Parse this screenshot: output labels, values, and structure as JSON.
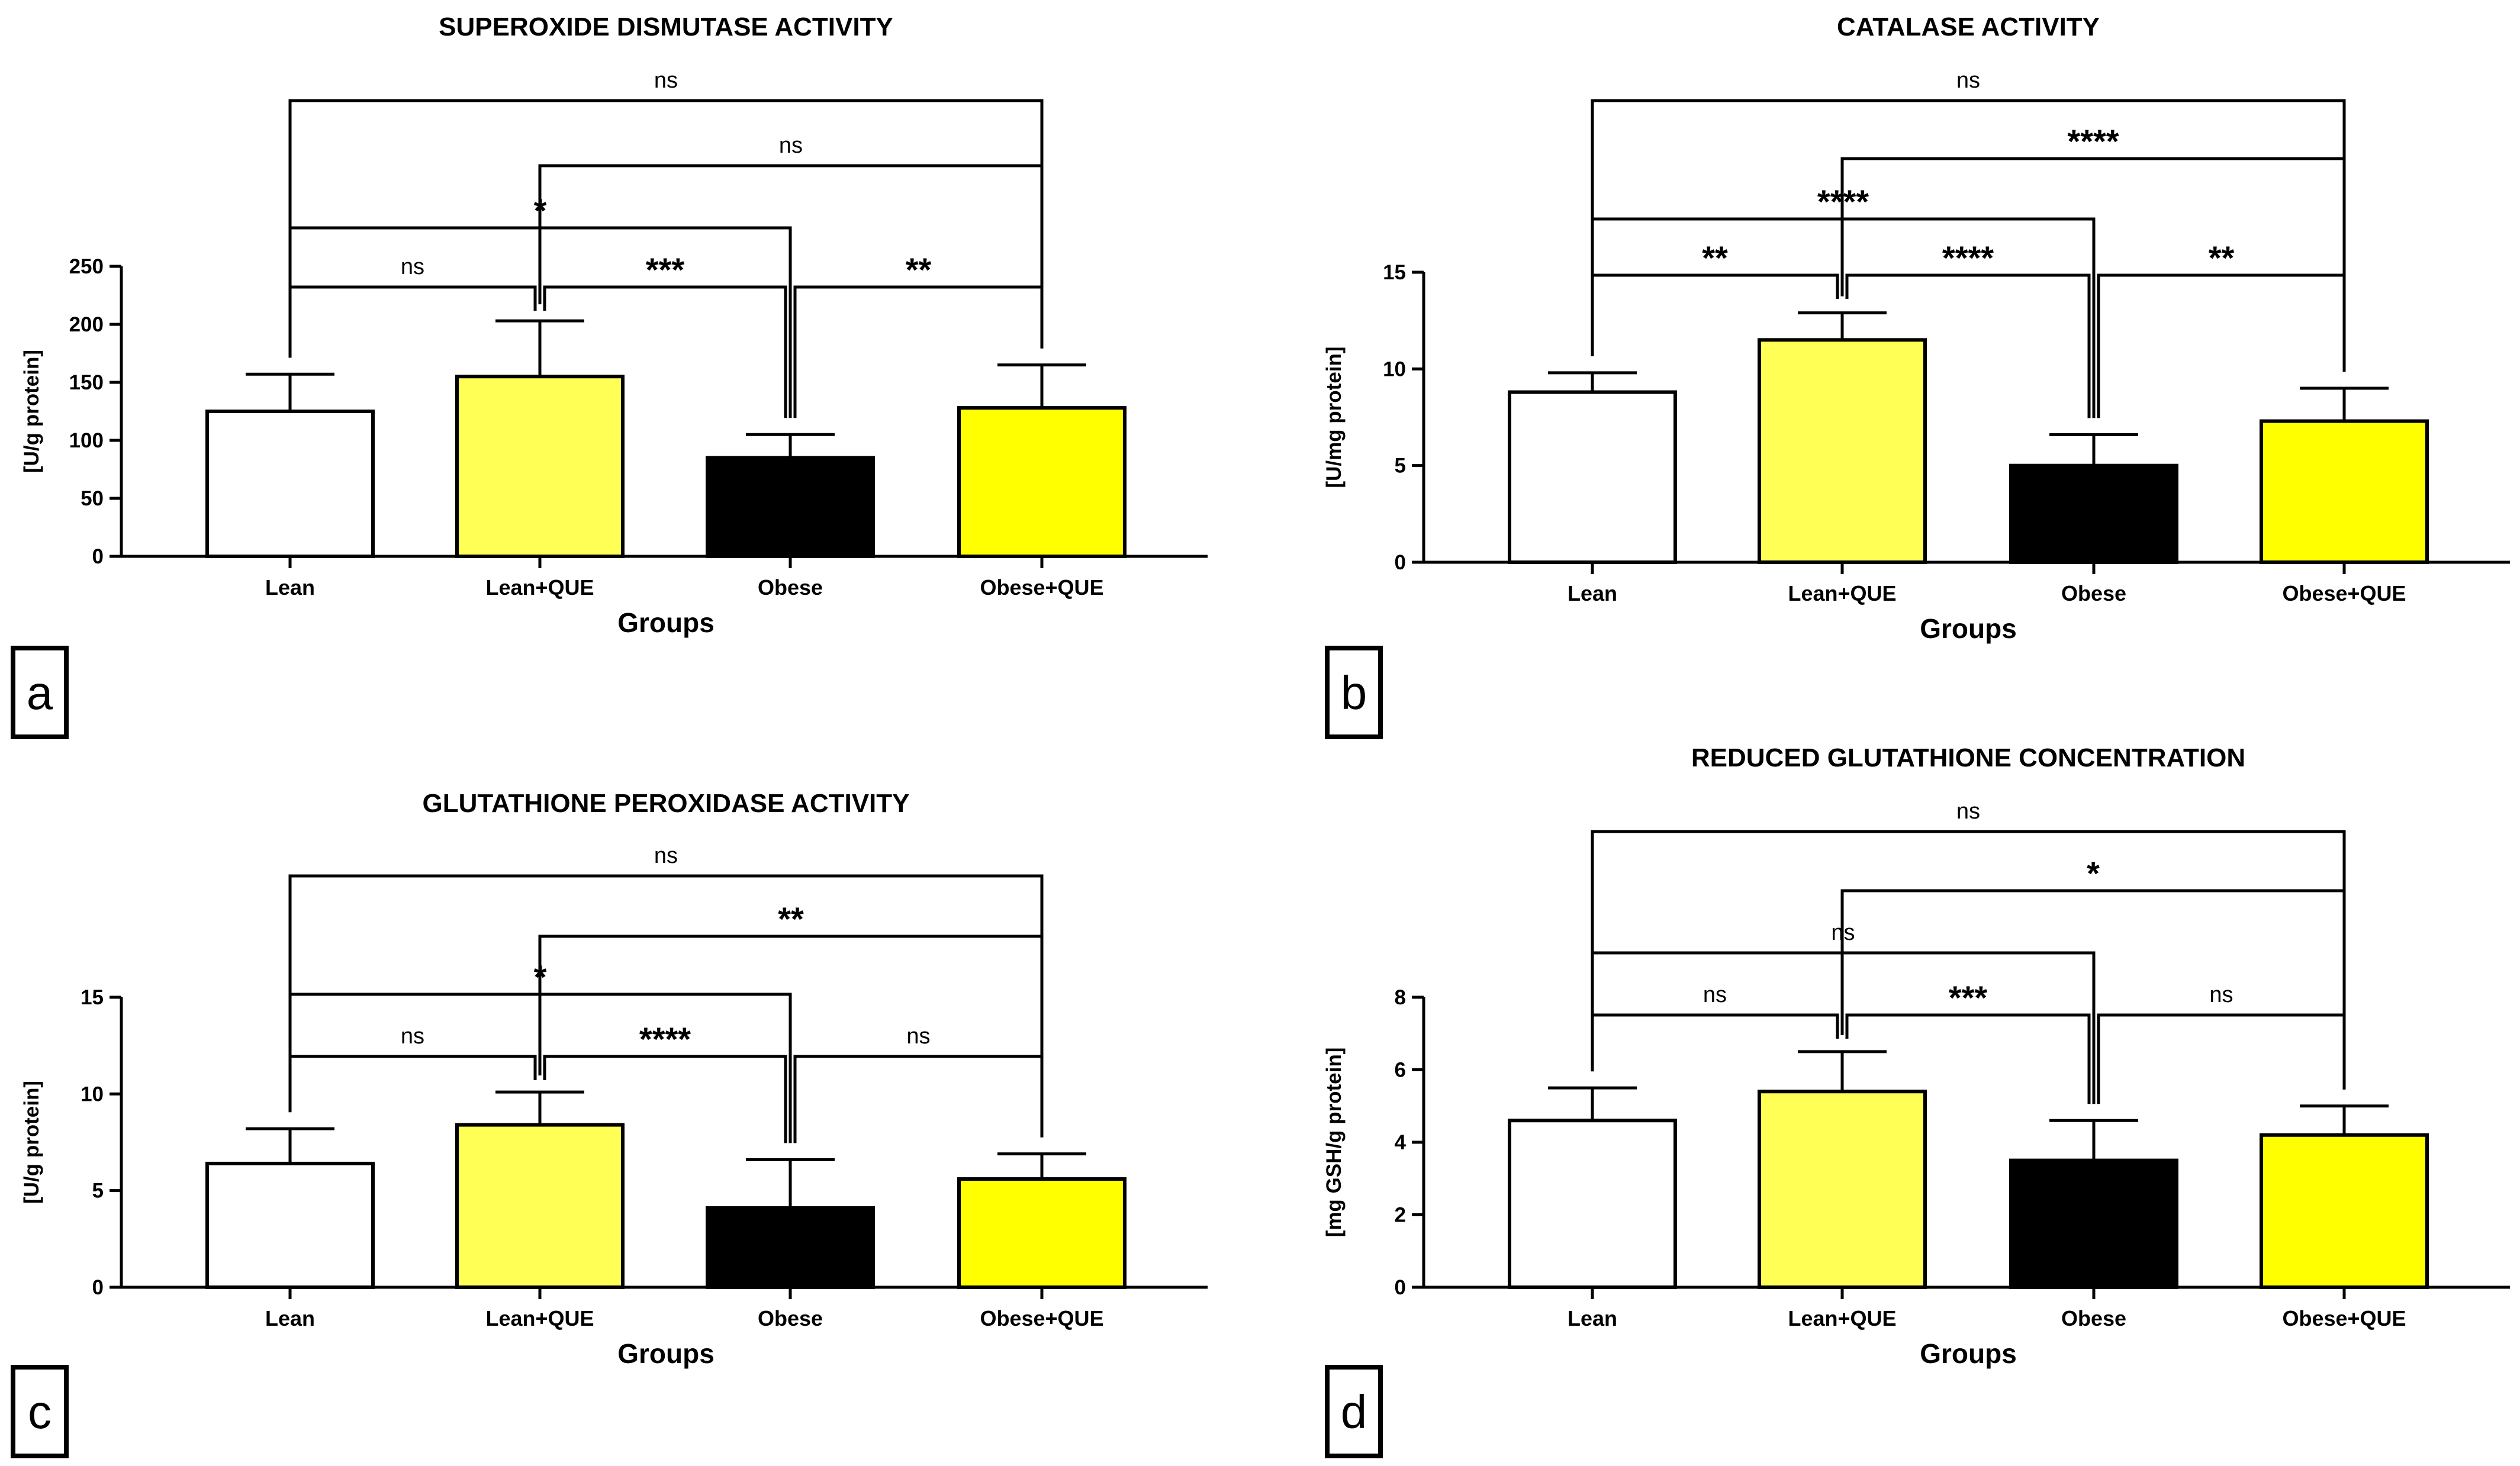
{
  "chart_data": [
    {
      "type": "bar",
      "panel": "a",
      "title": "SUPEROXIDE DISMUTASE ACTIVITY",
      "xlabel": "Groups",
      "ylabel": "[U/g protein]",
      "ylim": [
        0,
        250
      ],
      "yticks": [
        "0",
        "50",
        "100",
        "150",
        "200",
        "250"
      ],
      "categories": [
        "Lean",
        "Lean+QUE",
        "Obese",
        "Obese+QUE"
      ],
      "values": [
        125,
        155,
        85,
        128
      ],
      "errors": [
        32,
        48,
        20,
        37
      ],
      "colors": [
        "#ffffff",
        "#ffff55",
        "#000000",
        "#ffff00"
      ],
      "comparisons": [
        {
          "from": 0,
          "to": 1,
          "label": "ns"
        },
        {
          "from": 1,
          "to": 2,
          "label": "***"
        },
        {
          "from": 2,
          "to": 3,
          "label": "**"
        },
        {
          "from": 0,
          "to": 2,
          "label": "*"
        },
        {
          "from": 1,
          "to": 3,
          "label": "ns"
        },
        {
          "from": 0,
          "to": 3,
          "label": "ns"
        }
      ]
    },
    {
      "type": "bar",
      "panel": "b",
      "title": "CATALASE ACTIVITY",
      "xlabel": "Groups",
      "ylabel": "[U/mg protein]",
      "ylim": [
        0,
        15
      ],
      "yticks": [
        "0",
        "5",
        "10",
        "15"
      ],
      "categories": [
        "Lean",
        "Lean+QUE",
        "Obese",
        "Obese+QUE"
      ],
      "values": [
        8.8,
        11.5,
        5.0,
        7.3
      ],
      "errors": [
        1.0,
        1.4,
        1.6,
        1.7
      ],
      "colors": [
        "#ffffff",
        "#ffff55",
        "#000000",
        "#ffff00"
      ],
      "comparisons": [
        {
          "from": 0,
          "to": 1,
          "label": "**"
        },
        {
          "from": 1,
          "to": 2,
          "label": "****"
        },
        {
          "from": 2,
          "to": 3,
          "label": "**"
        },
        {
          "from": 0,
          "to": 2,
          "label": "****"
        },
        {
          "from": 1,
          "to": 3,
          "label": "****"
        },
        {
          "from": 0,
          "to": 3,
          "label": "ns"
        }
      ]
    },
    {
      "type": "bar",
      "panel": "c",
      "title": "GLUTATHIONE PEROXIDASE ACTIVITY",
      "xlabel": "Groups",
      "ylabel": "[U/g protein]",
      "ylim": [
        0,
        15
      ],
      "yticks": [
        "0",
        "5",
        "10",
        "15"
      ],
      "categories": [
        "Lean",
        "Lean+QUE",
        "Obese",
        "Obese+QUE"
      ],
      "values": [
        6.4,
        8.4,
        4.1,
        5.6
      ],
      "errors": [
        1.8,
        1.7,
        2.5,
        1.3
      ],
      "colors": [
        "#ffffff",
        "#ffff55",
        "#000000",
        "#ffff00"
      ],
      "comparisons": [
        {
          "from": 0,
          "to": 1,
          "label": "ns"
        },
        {
          "from": 1,
          "to": 2,
          "label": "****"
        },
        {
          "from": 2,
          "to": 3,
          "label": "ns"
        },
        {
          "from": 0,
          "to": 2,
          "label": "*"
        },
        {
          "from": 1,
          "to": 3,
          "label": "**"
        },
        {
          "from": 0,
          "to": 3,
          "label": "ns"
        }
      ]
    },
    {
      "type": "bar",
      "panel": "d",
      "title": "REDUCED GLUTATHIONE CONCENTRATION",
      "xlabel": "Groups",
      "ylabel": "[mg GSH/g protein]",
      "ylim": [
        0,
        8
      ],
      "yticks": [
        "0",
        "2",
        "4",
        "6",
        "8"
      ],
      "categories": [
        "Lean",
        "Lean+QUE",
        "Obese",
        "Obese+QUE"
      ],
      "values": [
        4.6,
        5.4,
        3.5,
        4.2
      ],
      "errors": [
        0.9,
        1.1,
        1.1,
        0.8
      ],
      "colors": [
        "#ffffff",
        "#ffff55",
        "#000000",
        "#ffff00"
      ],
      "comparisons": [
        {
          "from": 0,
          "to": 1,
          "label": "ns"
        },
        {
          "from": 1,
          "to": 2,
          "label": "***"
        },
        {
          "from": 2,
          "to": 3,
          "label": "ns"
        },
        {
          "from": 0,
          "to": 2,
          "label": "ns"
        },
        {
          "from": 1,
          "to": 3,
          "label": "*"
        },
        {
          "from": 0,
          "to": 3,
          "label": "ns"
        }
      ]
    }
  ]
}
